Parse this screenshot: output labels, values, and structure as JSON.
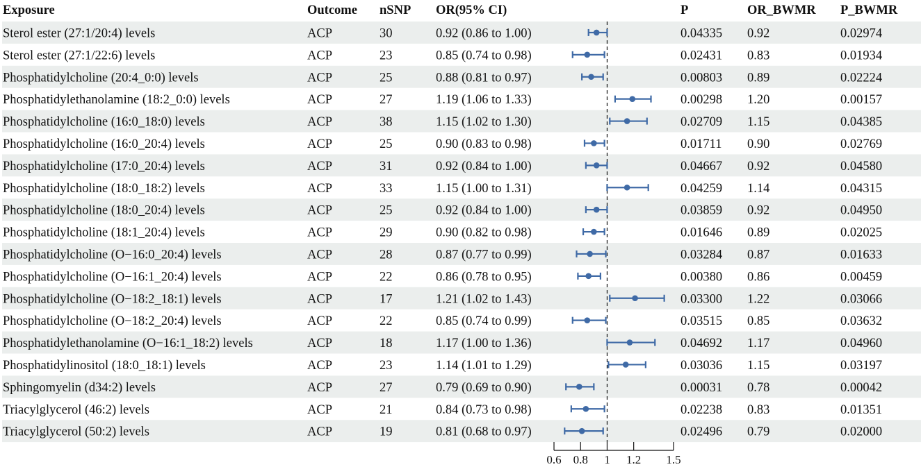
{
  "chart_data": {
    "type": "forest",
    "headers": {
      "exposure": "Exposure",
      "outcome": "Outcome",
      "nsnp": "nSNP",
      "or_ci": "OR(95% CI)",
      "p": "P",
      "or_bwmr": "OR_BWMR",
      "p_bwmr": "P_BWMR"
    },
    "xlim": [
      0.6,
      1.5
    ],
    "reference_line": 1,
    "ticks": [
      0.6,
      0.8,
      1,
      1.2,
      1.5
    ],
    "tick_labels": [
      "0.6",
      "0.8",
      "1",
      "1.2",
      "1.5"
    ],
    "marker_color": "#3f6aa6",
    "stripe_color": "#ebeeed",
    "rows": [
      {
        "exposure": "Sterol ester (27:1/20:4) levels",
        "outcome": "ACP",
        "nsnp": "30",
        "or_ci": "0.92 (0.86 to 1.00)",
        "or": 0.92,
        "lo": 0.86,
        "hi": 1.0,
        "p": "0.04335",
        "or_bwmr": "0.92",
        "p_bwmr": "0.02974"
      },
      {
        "exposure": "Sterol ester (27:1/22:6) levels",
        "outcome": "ACP",
        "nsnp": "23",
        "or_ci": "0.85 (0.74 to 0.98)",
        "or": 0.85,
        "lo": 0.74,
        "hi": 0.98,
        "p": "0.02431",
        "or_bwmr": "0.83",
        "p_bwmr": "0.01934"
      },
      {
        "exposure": "Phosphatidylcholine (20:4_0:0) levels",
        "outcome": "ACP",
        "nsnp": "25",
        "or_ci": "0.88 (0.81 to 0.97)",
        "or": 0.88,
        "lo": 0.81,
        "hi": 0.97,
        "p": "0.00803",
        "or_bwmr": "0.89",
        "p_bwmr": "0.02224"
      },
      {
        "exposure": "Phosphatidylethanolamine (18:2_0:0) levels",
        "outcome": "ACP",
        "nsnp": "27",
        "or_ci": "1.19 (1.06 to 1.33)",
        "or": 1.19,
        "lo": 1.06,
        "hi": 1.33,
        "p": "0.00298",
        "or_bwmr": "1.20",
        "p_bwmr": "0.00157"
      },
      {
        "exposure": "Phosphatidylcholine (16:0_18:0) levels",
        "outcome": "ACP",
        "nsnp": "38",
        "or_ci": "1.15 (1.02 to 1.30)",
        "or": 1.15,
        "lo": 1.02,
        "hi": 1.3,
        "p": "0.02709",
        "or_bwmr": "1.15",
        "p_bwmr": "0.04385"
      },
      {
        "exposure": "Phosphatidylcholine (16:0_20:4) levels",
        "outcome": "ACP",
        "nsnp": "25",
        "or_ci": "0.90 (0.83 to 0.98)",
        "or": 0.9,
        "lo": 0.83,
        "hi": 0.98,
        "p": "0.01711",
        "or_bwmr": "0.90",
        "p_bwmr": "0.02769"
      },
      {
        "exposure": "Phosphatidylcholine (17:0_20:4) levels",
        "outcome": "ACP",
        "nsnp": "31",
        "or_ci": "0.92 (0.84 to 1.00)",
        "or": 0.92,
        "lo": 0.84,
        "hi": 1.0,
        "p": "0.04667",
        "or_bwmr": "0.92",
        "p_bwmr": "0.04580"
      },
      {
        "exposure": "Phosphatidylcholine (18:0_18:2) levels",
        "outcome": "ACP",
        "nsnp": "33",
        "or_ci": "1.15 (1.00 to 1.31)",
        "or": 1.15,
        "lo": 1.0,
        "hi": 1.31,
        "p": "0.04259",
        "or_bwmr": "1.14",
        "p_bwmr": "0.04315"
      },
      {
        "exposure": "Phosphatidylcholine (18:0_20:4) levels",
        "outcome": "ACP",
        "nsnp": "25",
        "or_ci": "0.92 (0.84 to 1.00)",
        "or": 0.92,
        "lo": 0.84,
        "hi": 1.0,
        "p": "0.03859",
        "or_bwmr": "0.92",
        "p_bwmr": "0.04950"
      },
      {
        "exposure": "Phosphatidylcholine (18:1_20:4) levels",
        "outcome": "ACP",
        "nsnp": "29",
        "or_ci": "0.90 (0.82 to 0.98)",
        "or": 0.9,
        "lo": 0.82,
        "hi": 0.98,
        "p": "0.01646",
        "or_bwmr": "0.89",
        "p_bwmr": "0.02025"
      },
      {
        "exposure": "Phosphatidylcholine (O−16:0_20:4) levels",
        "outcome": "ACP",
        "nsnp": "28",
        "or_ci": "0.87 (0.77 to 0.99)",
        "or": 0.87,
        "lo": 0.77,
        "hi": 0.99,
        "p": "0.03284",
        "or_bwmr": "0.87",
        "p_bwmr": "0.01633"
      },
      {
        "exposure": "Phosphatidylcholine (O−16:1_20:4) levels",
        "outcome": "ACP",
        "nsnp": "22",
        "or_ci": "0.86 (0.78 to 0.95)",
        "or": 0.86,
        "lo": 0.78,
        "hi": 0.95,
        "p": "0.00380",
        "or_bwmr": "0.86",
        "p_bwmr": "0.00459"
      },
      {
        "exposure": "Phosphatidylcholine (O−18:2_18:1) levels",
        "outcome": "ACP",
        "nsnp": "17",
        "or_ci": "1.21 (1.02 to 1.43)",
        "or": 1.21,
        "lo": 1.02,
        "hi": 1.43,
        "p": "0.03300",
        "or_bwmr": "1.22",
        "p_bwmr": "0.03066"
      },
      {
        "exposure": "Phosphatidylcholine (O−18:2_20:4) levels",
        "outcome": "ACP",
        "nsnp": "22",
        "or_ci": "0.85 (0.74 to 0.99)",
        "or": 0.85,
        "lo": 0.74,
        "hi": 0.99,
        "p": "0.03515",
        "or_bwmr": "0.85",
        "p_bwmr": "0.03632"
      },
      {
        "exposure": "Phosphatidylethanolamine (O−16:1_18:2) levels",
        "outcome": "ACP",
        "nsnp": "18",
        "or_ci": "1.17 (1.00 to 1.36)",
        "or": 1.17,
        "lo": 1.0,
        "hi": 1.36,
        "p": "0.04692",
        "or_bwmr": "1.17",
        "p_bwmr": "0.04960"
      },
      {
        "exposure": "Phosphatidylinositol (18:0_18:1) levels",
        "outcome": "ACP",
        "nsnp": "23",
        "or_ci": "1.14 (1.01 to 1.29)",
        "or": 1.14,
        "lo": 1.01,
        "hi": 1.29,
        "p": "0.03036",
        "or_bwmr": "1.15",
        "p_bwmr": "0.03197"
      },
      {
        "exposure": "Sphingomyelin (d34:2) levels",
        "outcome": "ACP",
        "nsnp": "27",
        "or_ci": "0.79 (0.69 to 0.90)",
        "or": 0.79,
        "lo": 0.69,
        "hi": 0.9,
        "p": "0.00031",
        "or_bwmr": "0.78",
        "p_bwmr": "0.00042"
      },
      {
        "exposure": "Triacylglycerol (46:2) levels",
        "outcome": "ACP",
        "nsnp": "21",
        "or_ci": "0.84 (0.73 to 0.98)",
        "or": 0.84,
        "lo": 0.73,
        "hi": 0.98,
        "p": "0.02238",
        "or_bwmr": "0.83",
        "p_bwmr": "0.01351"
      },
      {
        "exposure": "Triacylglycerol (50:2) levels",
        "outcome": "ACP",
        "nsnp": "19",
        "or_ci": "0.81 (0.68 to 0.97)",
        "or": 0.81,
        "lo": 0.68,
        "hi": 0.97,
        "p": "0.02496",
        "or_bwmr": "0.79",
        "p_bwmr": "0.02000"
      }
    ]
  }
}
